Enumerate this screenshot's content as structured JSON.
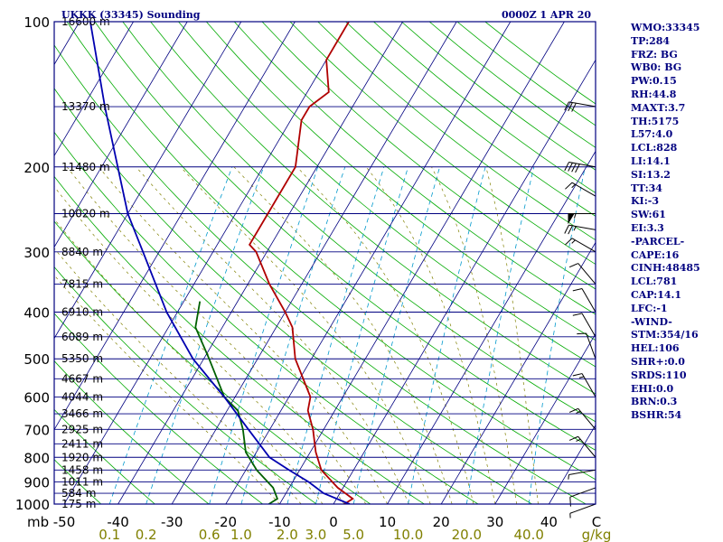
{
  "header": {
    "title": "UKKK (33345) Sounding",
    "time": "0000Z  1 APR 20"
  },
  "stats": [
    "WMO:33345",
    "TP:284",
    "FRZ: BG",
    "WB0: BG",
    "PW:0.15",
    "RH:44.8",
    "MAXT:3.7",
    "TH:5175",
    "L57:4.0",
    "LCL:828",
    "LI:14.1",
    "SI:13.2",
    "TT:34",
    "KI:-3",
    "SW:61",
    "EI:3.3",
    "-PARCEL-",
    "CAPE:16",
    "CINH:48485",
    "LCL:781",
    "CAP:14.1",
    "LFC:-1",
    "-WIND-",
    "STM:354/16",
    "HEL:106",
    "SHR+:0.0",
    "SRDS:110",
    "EHI:0.0",
    "BRN:0.3",
    "BSHR:54"
  ],
  "chart_data": {
    "type": "line",
    "title": "UKKK (33345) Sounding",
    "pressure_ticks": [
      "100",
      "200",
      "300",
      "400",
      "500",
      "600",
      "700",
      "800",
      "900",
      "1000"
    ],
    "pressure_axis_label": "mb",
    "temperature_ticks": [
      "-50",
      "-40",
      "-30",
      "-20",
      "-10",
      "0",
      "10",
      "20",
      "30",
      "40"
    ],
    "temperature_axis_label": "C",
    "mixing_ratio_ticks": [
      "0.1",
      "0.2",
      "0.6",
      "1.0",
      "2.0",
      "3.0",
      "5.0",
      "10.0",
      "20.0",
      "40.0"
    ],
    "mixing_ratio_axis_label": "g/kg",
    "height_levels": [
      {
        "p": 100,
        "label": "16600 m"
      },
      {
        "p": 150,
        "label": "13370 m"
      },
      {
        "p": 200,
        "label": "11480 m"
      },
      {
        "p": 250,
        "label": "10020 m"
      },
      {
        "p": 300,
        "label": "8840 m"
      },
      {
        "p": 350,
        "label": "7815 m"
      },
      {
        "p": 400,
        "label": "6910 m"
      },
      {
        "p": 450,
        "label": "6089 m"
      },
      {
        "p": 500,
        "label": "5350 m"
      },
      {
        "p": 550,
        "label": "4667 m"
      },
      {
        "p": 600,
        "label": "4044 m"
      },
      {
        "p": 650,
        "label": "3466 m"
      },
      {
        "p": 700,
        "label": "2925 m"
      },
      {
        "p": 750,
        "label": "2411 m"
      },
      {
        "p": 800,
        "label": "1920 m"
      },
      {
        "p": 850,
        "label": "1458 m"
      },
      {
        "p": 900,
        "label": "1011 m"
      },
      {
        "p": 950,
        "label": "584 m"
      },
      {
        "p": 1000,
        "label": "175 m"
      }
    ],
    "series": [
      {
        "name": "Temperature",
        "color": "#b00000",
        "points": [
          {
            "p": 1000,
            "t": 2
          },
          {
            "p": 975,
            "t": 3
          },
          {
            "p": 925,
            "t": -1
          },
          {
            "p": 850,
            "t": -6
          },
          {
            "p": 780,
            "t": -9
          },
          {
            "p": 700,
            "t": -12
          },
          {
            "p": 640,
            "t": -15
          },
          {
            "p": 600,
            "t": -16
          },
          {
            "p": 500,
            "t": -23
          },
          {
            "p": 430,
            "t": -27
          },
          {
            "p": 400,
            "t": -30
          },
          {
            "p": 350,
            "t": -36
          },
          {
            "p": 300,
            "t": -42
          },
          {
            "p": 290,
            "t": -44
          },
          {
            "p": 250,
            "t": -44
          },
          {
            "p": 200,
            "t": -44
          },
          {
            "p": 160,
            "t": -48
          },
          {
            "p": 150,
            "t": -48
          },
          {
            "p": 140,
            "t": -46
          },
          {
            "p": 120,
            "t": -50
          },
          {
            "p": 100,
            "t": -50
          }
        ]
      },
      {
        "name": "Dewpoint",
        "color": "#006000",
        "points": [
          {
            "p": 1000,
            "t": -12
          },
          {
            "p": 975,
            "t": -11
          },
          {
            "p": 925,
            "t": -13
          },
          {
            "p": 850,
            "t": -18
          },
          {
            "p": 780,
            "t": -22
          },
          {
            "p": 700,
            "t": -25
          },
          {
            "p": 640,
            "t": -28
          },
          {
            "p": 600,
            "t": -32
          },
          {
            "p": 500,
            "t": -39
          },
          {
            "p": 430,
            "t": -45
          },
          {
            "p": 380,
            "t": -47
          }
        ]
      },
      {
        "name": "Parcel",
        "color": "#0000b0",
        "points": [
          {
            "p": 1000,
            "t": 3
          },
          {
            "p": 950,
            "t": -3
          },
          {
            "p": 900,
            "t": -7
          },
          {
            "p": 850,
            "t": -12
          },
          {
            "p": 800,
            "t": -17
          },
          {
            "p": 700,
            "t": -24
          },
          {
            "p": 600,
            "t": -32
          },
          {
            "p": 500,
            "t": -42
          },
          {
            "p": 400,
            "t": -52
          },
          {
            "p": 300,
            "t": -63
          },
          {
            "p": 250,
            "t": -70
          },
          {
            "p": 200,
            "t": -77
          },
          {
            "p": 150,
            "t": -86
          },
          {
            "p": 100,
            "t": -98
          }
        ]
      }
    ],
    "wind_barbs": [
      {
        "p": 150,
        "dir": 280,
        "kt": 30
      },
      {
        "p": 200,
        "dir": 280,
        "kt": 40
      },
      {
        "p": 230,
        "dir": 300,
        "kt": 15
      },
      {
        "p": 250,
        "dir": 270,
        "kt": 55
      },
      {
        "p": 270,
        "dir": 280,
        "kt": 25
      },
      {
        "p": 300,
        "dir": 300,
        "kt": 15
      },
      {
        "p": 350,
        "dir": 320,
        "kt": 10
      },
      {
        "p": 400,
        "dir": 330,
        "kt": 10
      },
      {
        "p": 450,
        "dir": 330,
        "kt": 10
      },
      {
        "p": 500,
        "dir": 340,
        "kt": 10
      },
      {
        "p": 600,
        "dir": 330,
        "kt": 15
      },
      {
        "p": 700,
        "dir": 320,
        "kt": 15
      },
      {
        "p": 800,
        "dir": 320,
        "kt": 15
      },
      {
        "p": 850,
        "dir": 260,
        "kt": 5
      },
      {
        "p": 925,
        "dir": 250,
        "kt": 10
      },
      {
        "p": 1000,
        "dir": 250,
        "kt": 5
      }
    ],
    "colors": {
      "frame": "#000080",
      "isobar": "#000080",
      "isotherm": "#000080",
      "dry_adiabat": "#00aa00",
      "moist_adiabat": "#808000",
      "mixing_ratio": "#0099cc",
      "temperature": "#b00000",
      "dewpoint": "#006000",
      "parcel": "#0000b0",
      "axis_text": "#000000",
      "mixing_text": "#808000"
    }
  }
}
